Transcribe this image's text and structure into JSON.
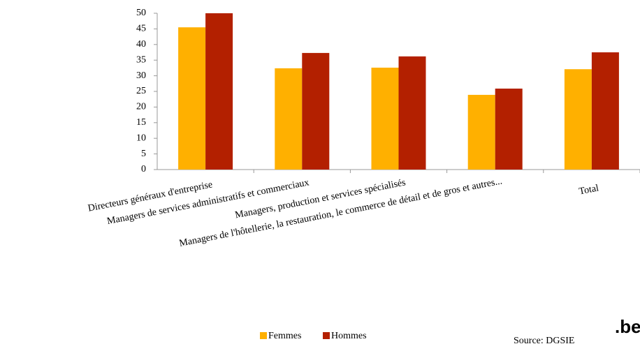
{
  "chart_data": {
    "type": "bar",
    "categories": [
      "Directeurs généraux d'entreprise",
      "Managers de services administratifs et commerciaux",
      "Managers, production et services spécialisés",
      "Managers de l'hôtellerie, la restauration, le commerce de détail et de gros et autres...",
      "Total"
    ],
    "series": [
      {
        "name": "Femmes",
        "color": "#ffb000",
        "values": [
          45.5,
          32.4,
          32.6,
          23.9,
          32.1
        ]
      },
      {
        "name": "Hommes",
        "color": "#b32000",
        "values": [
          50,
          37.3,
          36.2,
          25.9,
          37.5
        ]
      }
    ],
    "ylim": [
      0,
      50
    ],
    "yticks": [
      0,
      5,
      10,
      15,
      20,
      25,
      30,
      35,
      40,
      45,
      50
    ],
    "grid": false,
    "legend": "bottom",
    "source": "Source: DGSIE",
    "logo": ".be"
  }
}
